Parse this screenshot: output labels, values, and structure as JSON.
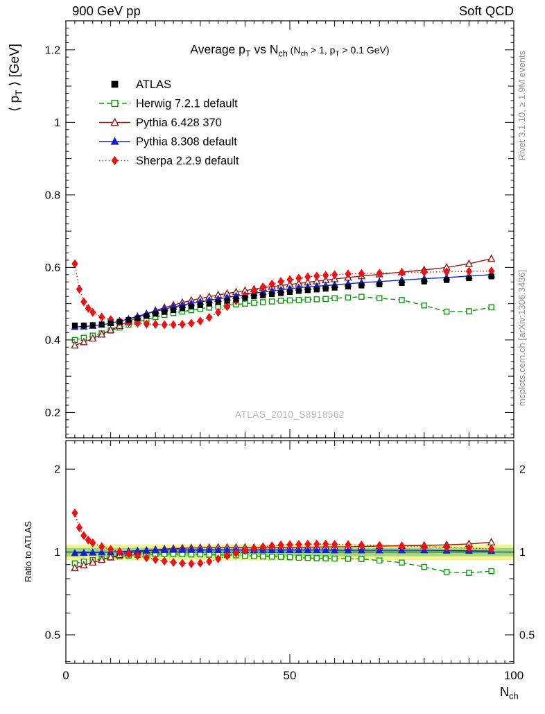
{
  "header": {
    "left": "900 GeV pp",
    "right": "Soft QCD"
  },
  "side_notes": {
    "top": "Rivet 3.1.10, ≥ 1.9M events",
    "bottom": "mcplots.cern.ch [arXiv:1306.3436]"
  },
  "watermark": "ATLAS_2010_S8918562",
  "chart_data": {
    "type": "line",
    "title_text": "Average pT vs Nch (Nch > 1, pT > 0.1 GeV)",
    "title_segments": [
      {
        "t": "Average p"
      },
      {
        "t": "T",
        "sub": true
      },
      {
        "t": " vs N"
      },
      {
        "t": "ch",
        "sub": true
      },
      {
        "t": " (N",
        "small": true
      },
      {
        "t": "ch",
        "small": true,
        "sub": true
      },
      {
        "t": " > 1, p",
        "small": true
      },
      {
        "t": "T",
        "small": true,
        "sub": true
      },
      {
        "t": " > 0.1 GeV)",
        "small": true
      }
    ],
    "ylabel_segments": [
      {
        "t": "⟨ p"
      },
      {
        "t": "T",
        "sub": true
      },
      {
        "t": " ⟩ [GeV]"
      }
    ],
    "xlabel_segments": [
      {
        "t": "N"
      },
      {
        "t": "ch",
        "sub": true
      }
    ],
    "ratio_label": "Ratio to ATLAS",
    "xlim": [
      0,
      100
    ],
    "xticks": [
      0,
      50,
      100
    ],
    "xtick_labels": [
      "0",
      "50",
      "100"
    ],
    "top_ylim": [
      0.13,
      1.28
    ],
    "top_yticks": [
      0.2,
      0.4,
      0.6,
      0.8,
      1.0,
      1.2
    ],
    "top_ytick_labels": [
      "0.2",
      "0.4",
      "0.6",
      "0.8",
      "1",
      "1.2"
    ],
    "ratio_ylim": [
      0.394,
      2.54
    ],
    "ratio_log": true,
    "ratio_yticks": [
      0.5,
      1,
      2
    ],
    "ratio_ytick_labels": [
      "0.5",
      "1",
      "2"
    ],
    "ratio_yminors": [
      0.4,
      0.6,
      0.7,
      0.8,
      0.9
    ],
    "band": {
      "outer": [
        0.935,
        1.065
      ],
      "inner": [
        0.965,
        1.035
      ],
      "outer_color": "#f7f58f",
      "inner_color": "#9cd989"
    },
    "series": [
      {
        "name": "ATLAS",
        "color": "#000000",
        "marker": "square-filled",
        "line": "none",
        "x": [
          2,
          4,
          6,
          8,
          10,
          12,
          14,
          16,
          18,
          20,
          22,
          24,
          26,
          28,
          30,
          32,
          34,
          36,
          38,
          40,
          42,
          44,
          46,
          48,
          50,
          52,
          54,
          56,
          58,
          60,
          63,
          66,
          70,
          75,
          80,
          85,
          90,
          95
        ],
        "y": [
          0.44,
          0.44,
          0.441,
          0.443,
          0.446,
          0.45,
          0.455,
          0.46,
          0.466,
          0.472,
          0.477,
          0.482,
          0.487,
          0.492,
          0.496,
          0.5,
          0.504,
          0.508,
          0.512,
          0.516,
          0.52,
          0.523,
          0.526,
          0.529,
          0.532,
          0.535,
          0.537,
          0.539,
          0.541,
          0.544,
          0.547,
          0.55,
          0.553,
          0.557,
          0.561,
          0.565,
          0.57,
          0.575
        ]
      },
      {
        "name": "Herwig 7.2.1 default",
        "color": "#0a9a0a",
        "marker": "square-open",
        "line": "dashed",
        "x": [
          2,
          4,
          6,
          8,
          10,
          12,
          14,
          16,
          18,
          20,
          22,
          24,
          26,
          28,
          30,
          32,
          34,
          36,
          38,
          40,
          42,
          44,
          46,
          48,
          50,
          52,
          54,
          56,
          58,
          60,
          63,
          66,
          70,
          75,
          80,
          85,
          90,
          95
        ],
        "y": [
          0.4,
          0.406,
          0.412,
          0.418,
          0.426,
          0.434,
          0.442,
          0.449,
          0.456,
          0.463,
          0.469,
          0.474,
          0.478,
          0.482,
          0.486,
          0.489,
          0.492,
          0.495,
          0.498,
          0.5,
          0.502,
          0.504,
          0.506,
          0.508,
          0.509,
          0.51,
          0.511,
          0.512,
          0.513,
          0.515,
          0.517,
          0.519,
          0.515,
          0.51,
          0.495,
          0.478,
          0.479,
          0.49
        ]
      },
      {
        "name": "Pythia 6.428 370",
        "color": "#8f1d1d",
        "marker": "triangle-open",
        "line": "solid",
        "x": [
          2,
          4,
          6,
          8,
          10,
          12,
          14,
          16,
          18,
          20,
          22,
          24,
          26,
          28,
          30,
          32,
          34,
          36,
          38,
          40,
          42,
          44,
          46,
          48,
          50,
          52,
          54,
          56,
          58,
          60,
          63,
          66,
          70,
          75,
          80,
          85,
          90,
          95
        ],
        "y": [
          0.385,
          0.394,
          0.404,
          0.415,
          0.427,
          0.439,
          0.451,
          0.462,
          0.472,
          0.481,
          0.489,
          0.496,
          0.503,
          0.509,
          0.514,
          0.519,
          0.524,
          0.528,
          0.532,
          0.536,
          0.54,
          0.544,
          0.547,
          0.55,
          0.553,
          0.556,
          0.559,
          0.562,
          0.565,
          0.568,
          0.572,
          0.576,
          0.581,
          0.587,
          0.593,
          0.6,
          0.61,
          0.624
        ]
      },
      {
        "name": "Pythia 8.308 default",
        "color": "#1122cc",
        "marker": "triangle-filled",
        "line": "solid",
        "x": [
          2,
          4,
          6,
          8,
          10,
          12,
          14,
          16,
          18,
          20,
          22,
          24,
          26,
          28,
          30,
          32,
          34,
          36,
          38,
          40,
          42,
          44,
          46,
          48,
          50,
          52,
          54,
          56,
          58,
          60,
          63,
          66,
          70,
          75,
          80,
          85,
          90,
          95
        ],
        "y": [
          0.436,
          0.437,
          0.439,
          0.442,
          0.446,
          0.452,
          0.458,
          0.465,
          0.472,
          0.479,
          0.485,
          0.491,
          0.496,
          0.501,
          0.505,
          0.509,
          0.513,
          0.517,
          0.521,
          0.525,
          0.529,
          0.532,
          0.535,
          0.538,
          0.541,
          0.544,
          0.546,
          0.548,
          0.55,
          0.552,
          0.555,
          0.558,
          0.561,
          0.565,
          0.569,
          0.572,
          0.576,
          0.58
        ]
      },
      {
        "name": "Sherpa 2.2.9 default",
        "color": "#ee1111",
        "marker": "diamond-filled",
        "line": "dotted",
        "x": [
          2,
          3,
          4,
          5,
          6,
          8,
          10,
          12,
          14,
          16,
          18,
          20,
          22,
          24,
          26,
          28,
          30,
          32,
          34,
          36,
          38,
          40,
          42,
          44,
          46,
          48,
          50,
          52,
          54,
          56,
          58,
          60,
          63,
          66,
          70,
          75,
          80,
          85,
          90,
          95
        ],
        "y": [
          0.61,
          0.54,
          0.505,
          0.487,
          0.476,
          0.463,
          0.456,
          0.451,
          0.448,
          0.446,
          0.444,
          0.443,
          0.442,
          0.442,
          0.443,
          0.446,
          0.452,
          0.462,
          0.476,
          0.492,
          0.508,
          0.522,
          0.535,
          0.546,
          0.554,
          0.561,
          0.566,
          0.57,
          0.574,
          0.576,
          0.578,
          0.58,
          0.582,
          0.583,
          0.584,
          0.586,
          0.587,
          0.588,
          0.589,
          0.59
        ]
      }
    ]
  }
}
